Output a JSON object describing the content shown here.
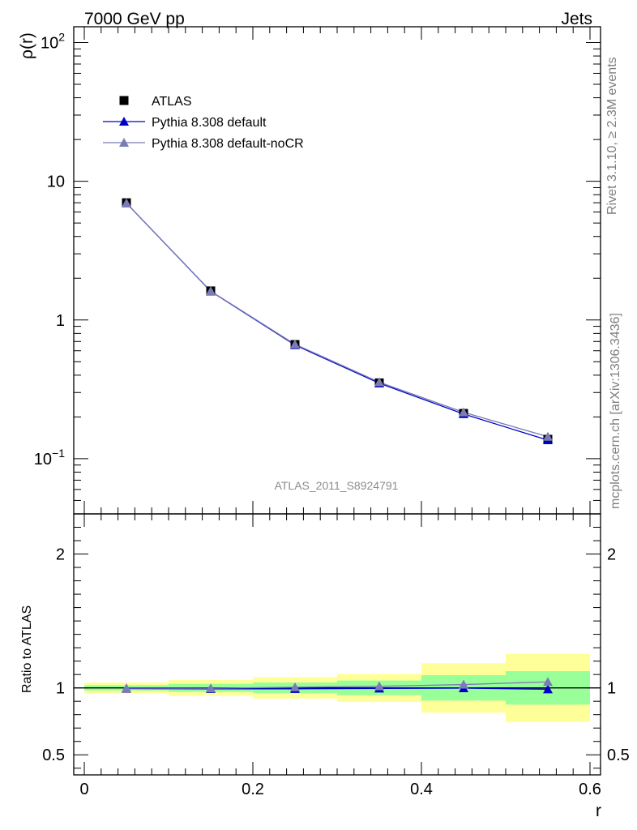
{
  "header": {
    "left": "7000 GeV pp",
    "right": "Jets"
  },
  "side_labels": {
    "rivet": "Rivet 3.1.10, ≥ 2.3M events",
    "source": "mcplots.cern.ch [arXiv:1306.3436]"
  },
  "watermark": "ATLAS_2011_S8924791",
  "chart_data": [
    {
      "type": "line",
      "panel": "main",
      "ylabel": "ρ(r)",
      "xlabel": "r",
      "yscale": "log",
      "xlim": [
        -0.0125,
        0.6125
      ],
      "ylim": [
        0.04,
        130
      ],
      "y_ticks": [
        {
          "value": 100,
          "base": "10",
          "exp": "2"
        },
        {
          "value": 10,
          "base": "10",
          "exp": ""
        },
        {
          "value": 1,
          "base": "1",
          "exp": ""
        },
        {
          "value": 0.1,
          "base": "10",
          "exp": "−1"
        }
      ],
      "legend_position": "top-left",
      "series": [
        {
          "name": "ATLAS",
          "marker": "square",
          "color": "#000000",
          "x": [
            0.05,
            0.15,
            0.25,
            0.35,
            0.45,
            0.55
          ],
          "values": [
            7.0,
            1.62,
            0.665,
            0.352,
            0.212,
            0.138
          ]
        },
        {
          "name": "Pythia 8.308 default",
          "marker": "triangle",
          "color": "#0000cc",
          "x": [
            0.05,
            0.15,
            0.25,
            0.35,
            0.45,
            0.55
          ],
          "values": [
            6.95,
            1.61,
            0.66,
            0.35,
            0.21,
            0.136
          ]
        },
        {
          "name": "Pythia 8.308 default-noCR",
          "marker": "triangle",
          "color": "#7b7bb5",
          "x": [
            0.05,
            0.15,
            0.25,
            0.35,
            0.45,
            0.55
          ],
          "values": [
            6.96,
            1.615,
            0.668,
            0.356,
            0.216,
            0.144
          ]
        }
      ]
    },
    {
      "type": "line",
      "panel": "ratio",
      "ylabel": "Ratio to ATLAS",
      "xlabel": "r",
      "xlim": [
        -0.0125,
        0.6125
      ],
      "ylim": [
        0.35,
        2.3
      ],
      "x_ticks": [
        "0",
        "0.2",
        "0.4",
        "0.6"
      ],
      "y_ticks": [
        "0.5",
        "1",
        "2"
      ],
      "bands": [
        {
          "x_low": 0.0,
          "x_high": 0.1,
          "yellow": [
            0.96,
            1.04
          ],
          "green": [
            0.98,
            1.02
          ]
        },
        {
          "x_low": 0.1,
          "x_high": 0.2,
          "yellow": [
            0.94,
            1.06
          ],
          "green": [
            0.97,
            1.03
          ]
        },
        {
          "x_low": 0.2,
          "x_high": 0.3,
          "yellow": [
            0.92,
            1.08
          ],
          "green": [
            0.96,
            1.04
          ]
        },
        {
          "x_low": 0.3,
          "x_high": 0.4,
          "yellow": [
            0.895,
            1.105
          ],
          "green": [
            0.945,
            1.055
          ]
        },
        {
          "x_low": 0.4,
          "x_high": 0.5,
          "yellow": [
            0.815,
            1.185
          ],
          "green": [
            0.905,
            1.095
          ]
        },
        {
          "x_low": 0.5,
          "x_high": 0.6,
          "yellow": [
            0.745,
            1.255
          ],
          "green": [
            0.875,
            1.125
          ]
        }
      ],
      "series": [
        {
          "name": "Pythia 8.308 default",
          "marker": "triangle",
          "color": "#0000cc",
          "x": [
            0.05,
            0.15,
            0.25,
            0.35,
            0.45,
            0.55
          ],
          "values": [
            0.995,
            0.993,
            0.993,
            0.996,
            0.998,
            0.99
          ]
        },
        {
          "name": "Pythia 8.308 default-noCR",
          "marker": "triangle",
          "color": "#7b7bb5",
          "x": [
            0.05,
            0.15,
            0.25,
            0.35,
            0.45,
            0.55
          ],
          "values": [
            0.998,
            0.997,
            1.005,
            1.012,
            1.025,
            1.045
          ]
        }
      ]
    }
  ]
}
